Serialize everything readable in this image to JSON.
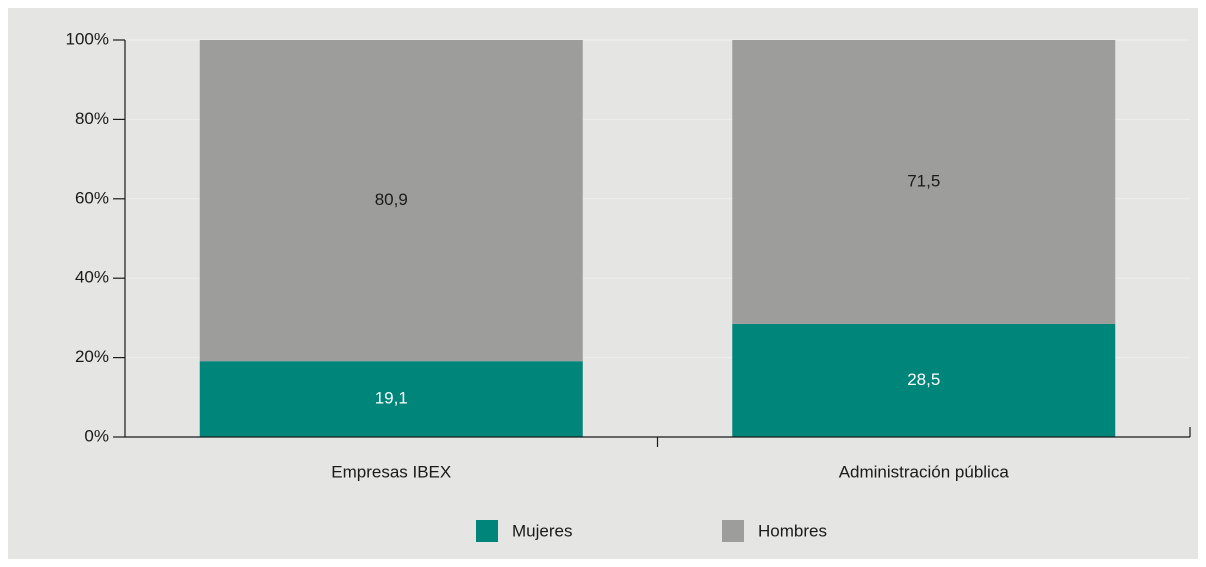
{
  "chart_data": {
    "type": "stacked_bar",
    "categories": [
      "Empresas IBEX",
      "Administración pública"
    ],
    "series": [
      {
        "name": "Mujeres",
        "color": "#00857a",
        "label_color": "#ffffff",
        "values": [
          19.1,
          28.5
        ],
        "value_labels": [
          "19,1",
          "28,5"
        ]
      },
      {
        "name": "Hombres",
        "color": "#9d9d9b",
        "label_color": "#1a1a1a",
        "values": [
          80.9,
          71.5
        ],
        "value_labels": [
          "80,9",
          "71,5"
        ]
      }
    ],
    "ylim": [
      0,
      100
    ],
    "yticks": [
      {
        "value": 0,
        "label": "0%"
      },
      {
        "value": 20,
        "label": "20%"
      },
      {
        "value": 40,
        "label": "40%"
      },
      {
        "value": 60,
        "label": "60%"
      },
      {
        "value": 80,
        "label": "80%"
      },
      {
        "value": 100,
        "label": "100%"
      }
    ],
    "grid": true,
    "legend": "bottom"
  }
}
